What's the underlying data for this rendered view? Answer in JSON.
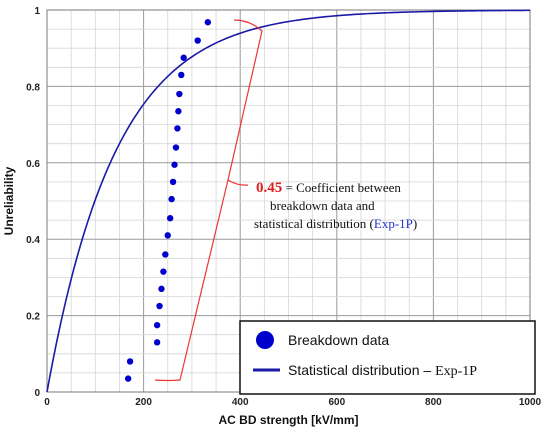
{
  "chart_data": {
    "type": "scatter",
    "xlabel": "AC BD strength [kV/mm]",
    "ylabel": "Unreliability",
    "xlim": [
      0,
      1000
    ],
    "ylim": [
      0,
      1
    ],
    "x_ticks": [
      0,
      200,
      400,
      600,
      800,
      1000
    ],
    "y_ticks": [
      0,
      0.2,
      0.4,
      0.6,
      0.8,
      1
    ],
    "grid": true,
    "series": [
      {
        "name": "Breakdown data",
        "kind": "points",
        "color": "#0000cc",
        "points": [
          [
            168,
            0.035
          ],
          [
            172,
            0.08
          ],
          [
            228,
            0.13
          ],
          [
            228,
            0.175
          ],
          [
            233,
            0.225
          ],
          [
            237,
            0.27
          ],
          [
            241,
            0.315
          ],
          [
            245,
            0.36
          ],
          [
            250,
            0.41
          ],
          [
            255,
            0.455
          ],
          [
            258,
            0.505
          ],
          [
            261,
            0.55
          ],
          [
            264,
            0.595
          ],
          [
            267,
            0.64
          ],
          [
            270,
            0.69
          ],
          [
            272,
            0.735
          ],
          [
            274,
            0.78
          ],
          [
            278,
            0.83
          ],
          [
            283,
            0.875
          ],
          [
            312,
            0.92
          ],
          [
            333,
            0.968
          ]
        ]
      },
      {
        "name": "Statistical distribution – Exp-1P",
        "kind": "curve",
        "model": "exponential",
        "rate": 0.007,
        "color": "#1a1aa8"
      }
    ],
    "legend": {
      "placement": "bottom-right",
      "item1": "Breakdown data",
      "item2_prefix": "Statistical distribution – ",
      "item2_link": "Exp-1P"
    },
    "annotation": {
      "value": "0.45",
      "line1": " = Coefficient between",
      "line2": "breakdown data and",
      "line3_prefix": "statistical distribution (",
      "line3_link": "Exp-1P",
      "line3_suffix": ")",
      "bracket_color": "#ee3333"
    }
  }
}
